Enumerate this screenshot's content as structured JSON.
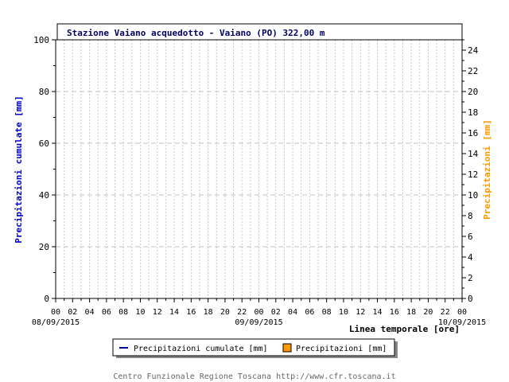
{
  "chart_data": {
    "type": "bar",
    "title": "Stazione Vaiano acquedotto - Vaiano (PO) 322,00 m",
    "ylabel_left": "Precipitazioni cumulate [mm]",
    "ylabel_right": "Precipitazioni [mm]",
    "xlabel": "Linea temporale [ore]",
    "ylim_left": [
      0,
      100
    ],
    "ylim_right": [
      0,
      25
    ],
    "left_ticks": [
      "0",
      "20",
      "40",
      "60",
      "80",
      "100"
    ],
    "right_ticks": [
      "0",
      "2",
      "4",
      "6",
      "8",
      "10",
      "12",
      "14",
      "16",
      "18",
      "20",
      "22",
      "24"
    ],
    "hour_labels": [
      "00",
      "02",
      "04",
      "06",
      "08",
      "10",
      "12",
      "14",
      "16",
      "18",
      "20",
      "22",
      "00",
      "02",
      "04",
      "06",
      "08",
      "10",
      "12",
      "14",
      "16",
      "18",
      "20",
      "22",
      "00"
    ],
    "date_labels": [
      "08/09/2015",
      "09/09/2015",
      "10/09/2015"
    ],
    "grid": true,
    "legend_position": "bottom-center",
    "series": [
      {
        "name": "Precipitazioni cumulate [mm]",
        "kind": "line",
        "color": "#000099",
        "values": []
      },
      {
        "name": "Precipitazioni [mm]",
        "kind": "bar",
        "color": "#ff9900",
        "values": []
      }
    ]
  },
  "legend": {
    "cumulate_label": "Precipitazioni cumulate [mm]",
    "hourly_label": "Precipitazioni [mm]"
  },
  "footer": {
    "credit": "Centro Funzionale Regione Toscana http://www.cfr.toscana.it"
  },
  "colors": {
    "title": "#000066",
    "left_axis_label": "#0000cc",
    "right_axis_label": "#ff9900",
    "grid": "#c0c0c0",
    "footer": "#666666"
  }
}
